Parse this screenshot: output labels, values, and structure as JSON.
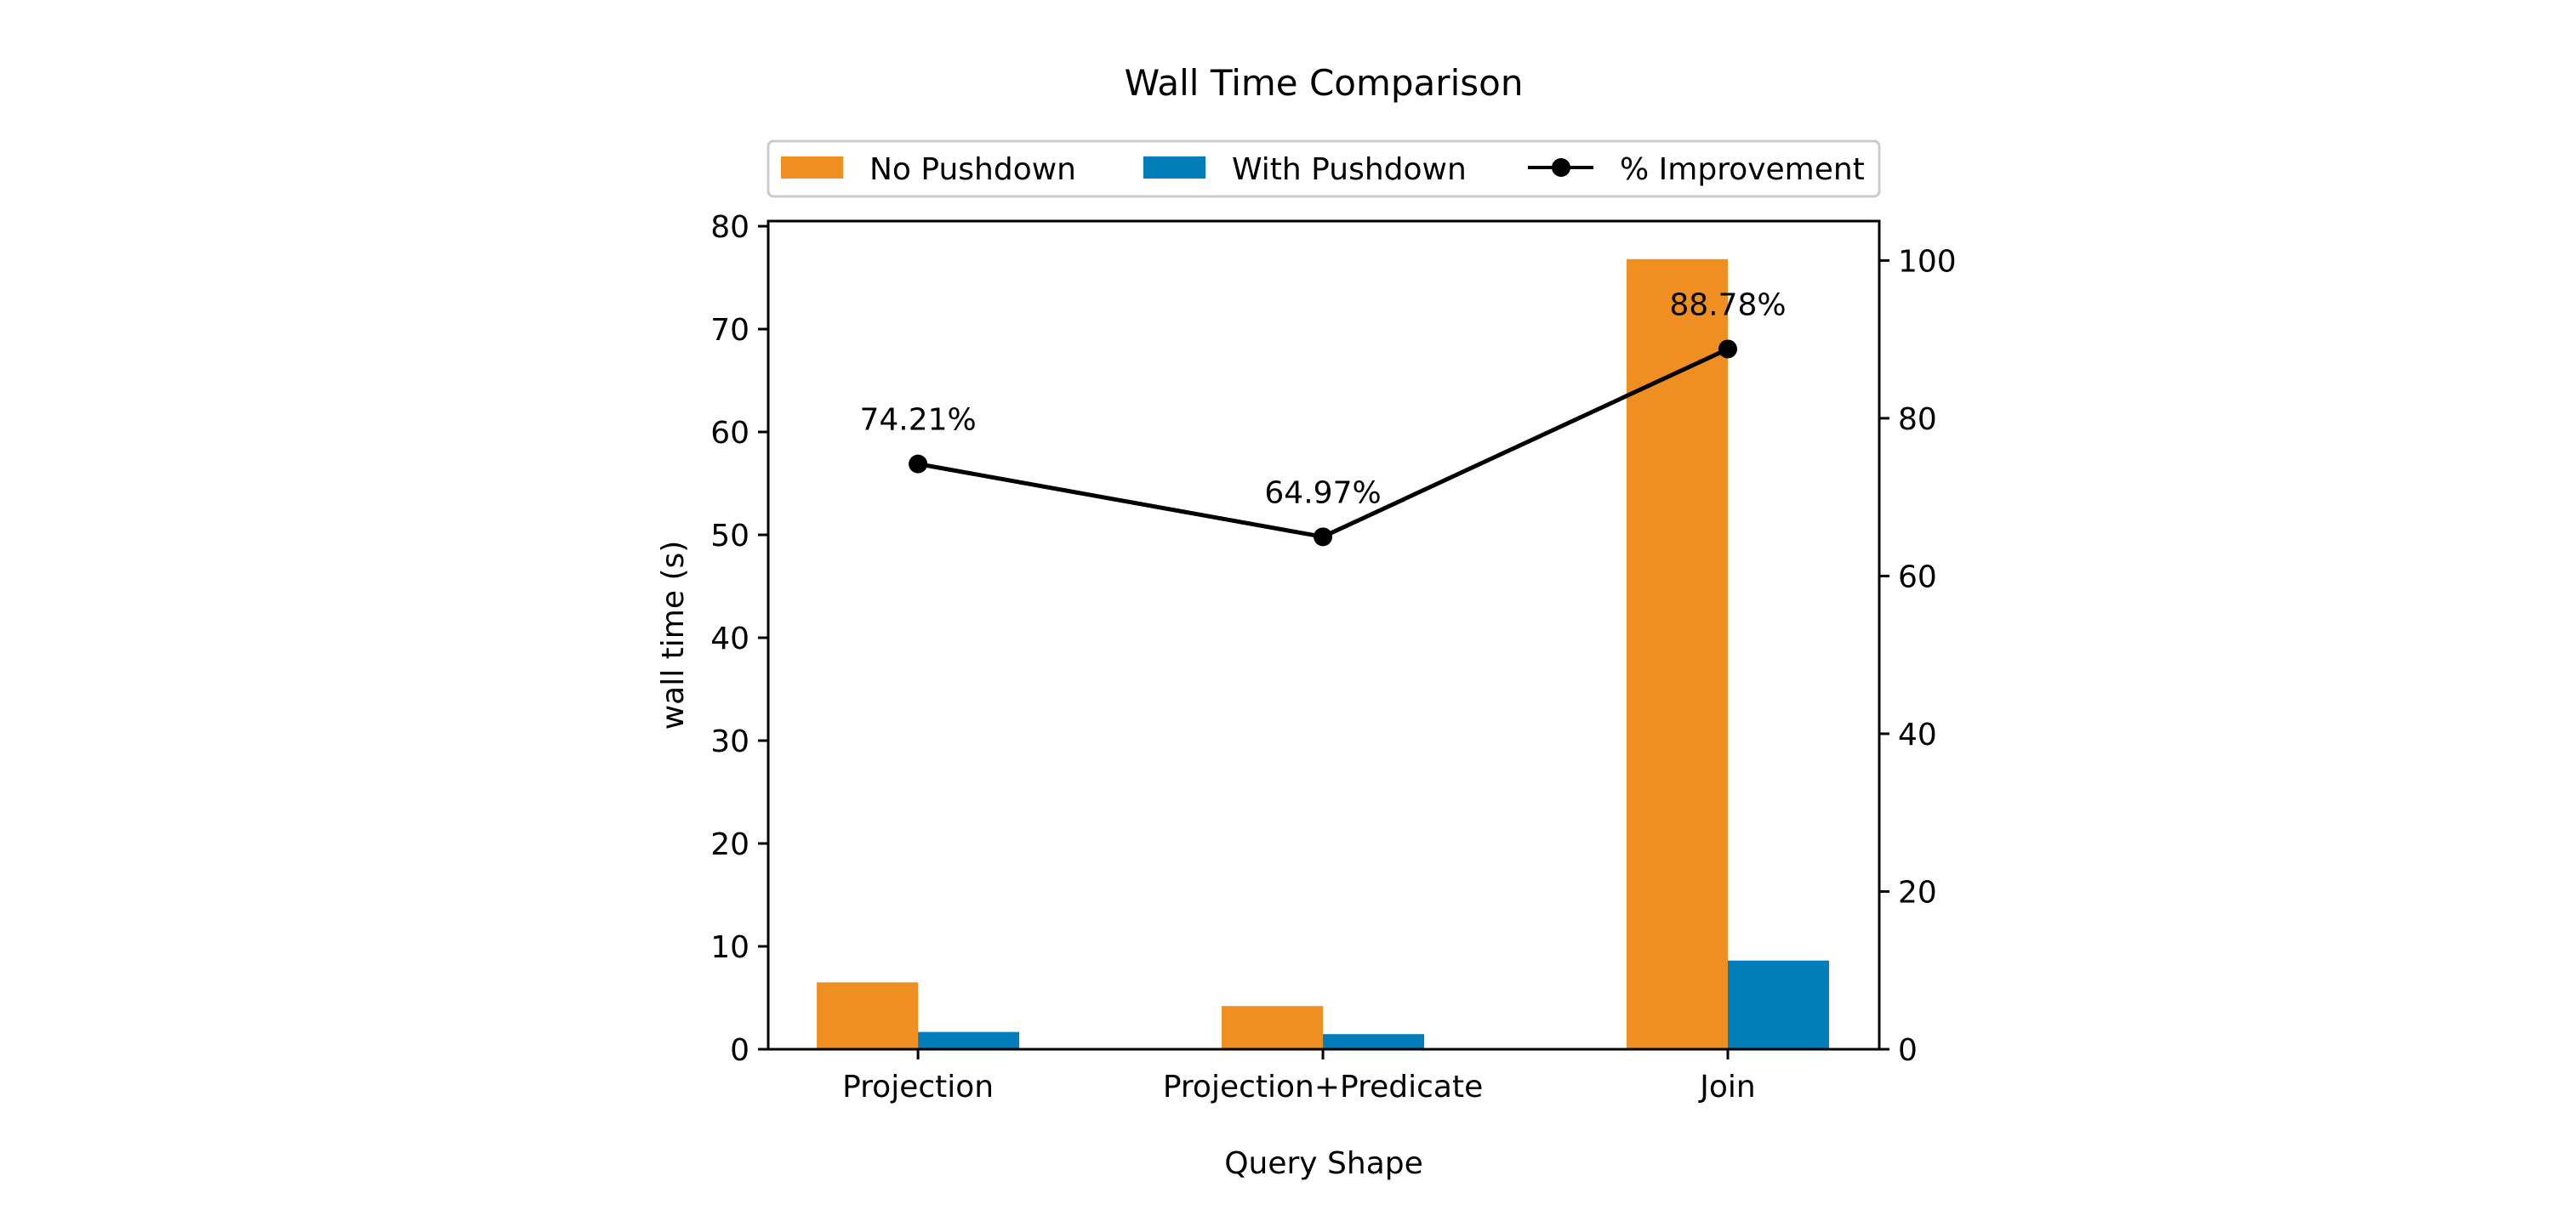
{
  "chart_data": {
    "type": "bar",
    "title": "Wall Time Comparison",
    "xlabel": "Query Shape",
    "ylabel": "wall time (s)",
    "y2label": "",
    "categories": [
      "Projection",
      "Projection+Predicate",
      "Join"
    ],
    "series": [
      {
        "name": "No Pushdown",
        "type": "bar",
        "axis": "left",
        "color": "#EF8E21",
        "values": [
          6.5,
          4.2,
          76.8
        ]
      },
      {
        "name": "With Pushdown",
        "type": "bar",
        "axis": "left",
        "color": "#037DBA",
        "values": [
          1.68,
          1.47,
          8.62
        ]
      },
      {
        "name": "% Improvement",
        "type": "line",
        "axis": "right",
        "color": "#000000",
        "marker": "circle",
        "values": [
          74.21,
          64.97,
          88.78
        ],
        "labels": [
          "74.21%",
          "64.97%",
          "88.78%"
        ]
      }
    ],
    "ylim": [
      0,
      80.5
    ],
    "y2lim": [
      0,
      105
    ],
    "yticks": [
      0,
      10,
      20,
      30,
      40,
      50,
      60,
      70,
      80
    ],
    "y2ticks": [
      0,
      20,
      40,
      60,
      80,
      100
    ],
    "grid": false,
    "legend": {
      "placement": "top-center",
      "columns": 3,
      "entries": [
        "No Pushdown",
        "With Pushdown",
        "% Improvement"
      ]
    }
  }
}
